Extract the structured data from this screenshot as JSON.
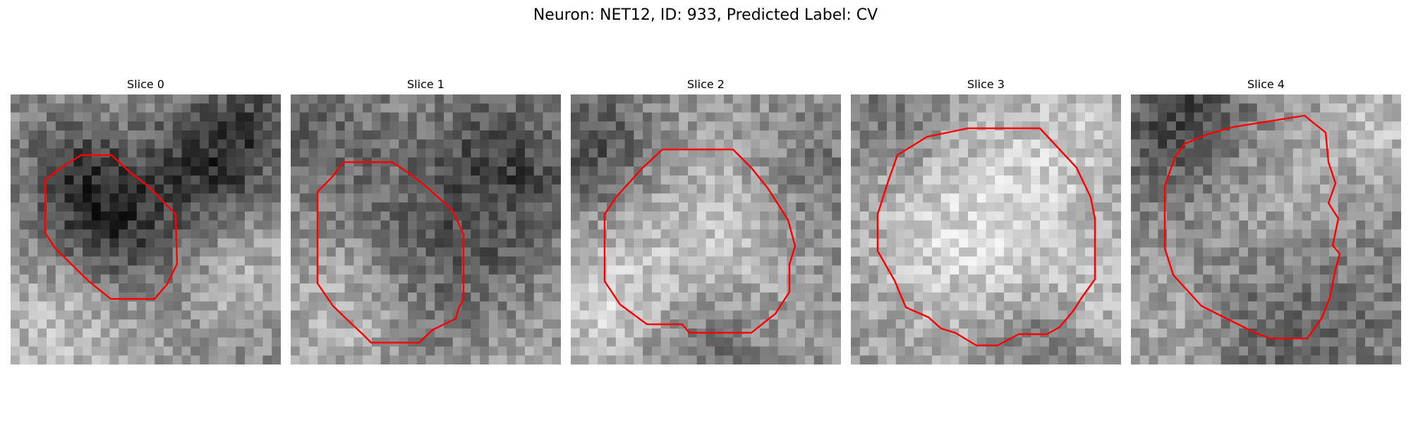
{
  "figure": {
    "title": "Neuron: NET12, ID: 933, Predicted Label: CV"
  },
  "colors": {
    "contour": "#ff0000",
    "background": "#ffffff",
    "colormap": "grayscale"
  },
  "panels": [
    {
      "title": "Slice 0"
    },
    {
      "title": "Slice 1"
    },
    {
      "title": "Slice 2"
    },
    {
      "title": "Slice 3"
    },
    {
      "title": "Slice 4"
    }
  ]
}
